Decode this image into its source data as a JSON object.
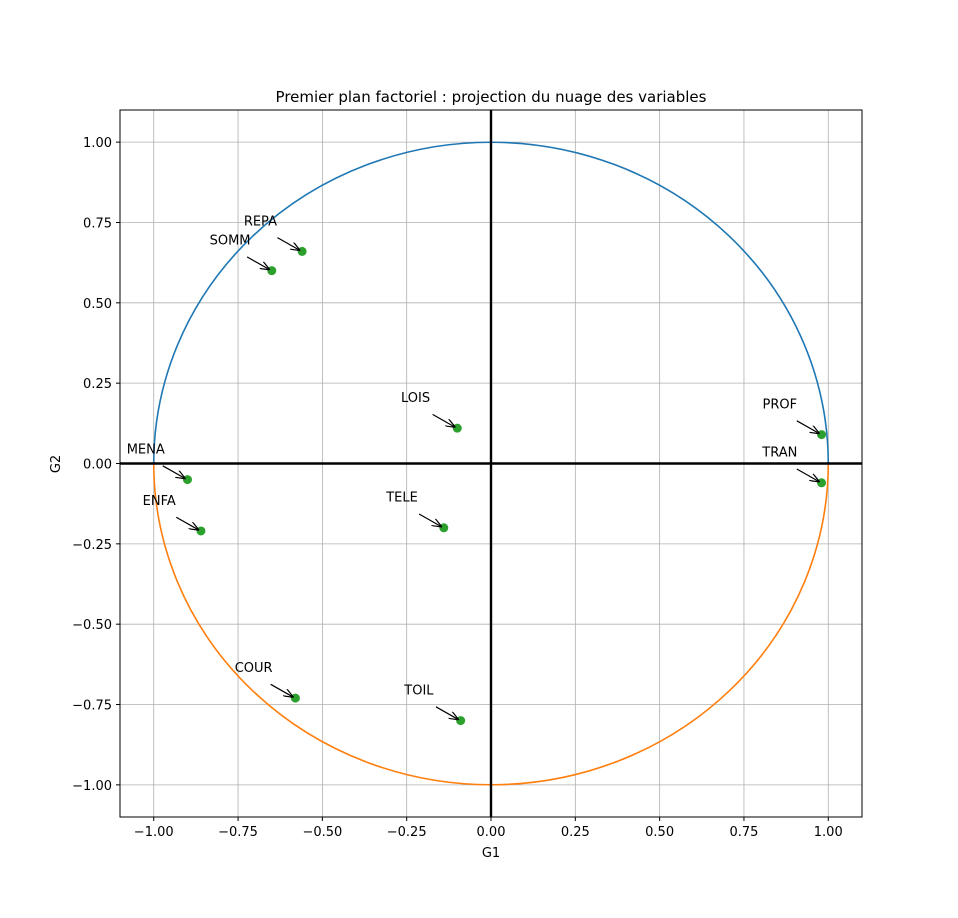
{
  "chart_data": {
    "type": "scatter",
    "title": "Premier plan factoriel : projection du nuage des variables",
    "xlabel": "G1",
    "ylabel": "G2",
    "xlim": [
      -1.1,
      1.1
    ],
    "ylim": [
      -1.1,
      1.1
    ],
    "grid": true,
    "xticks": [
      -1.0,
      -0.75,
      -0.5,
      -0.25,
      0.0,
      0.25,
      0.5,
      0.75,
      1.0
    ],
    "yticks": [
      -1.0,
      -0.75,
      -0.5,
      -0.25,
      0.0,
      0.25,
      0.5,
      0.75,
      1.0
    ],
    "xtick_labels": [
      "−1.00",
      "−0.75",
      "−0.50",
      "−0.25",
      "0.00",
      "0.25",
      "0.50",
      "0.75",
      "1.00"
    ],
    "ytick_labels": [
      "−1.00",
      "−0.75",
      "−0.50",
      "−0.25",
      "0.00",
      "0.25",
      "0.50",
      "0.75",
      "1.00"
    ],
    "circle": {
      "radius": 1,
      "upper_color": "#1f77b4",
      "lower_color": "#ff7f0e"
    },
    "point_color": "#2ca02c",
    "points": [
      {
        "label": "REPA",
        "x": -0.56,
        "y": 0.66
      },
      {
        "label": "SOMM",
        "x": -0.65,
        "y": 0.6
      },
      {
        "label": "LOIS",
        "x": -0.1,
        "y": 0.11
      },
      {
        "label": "PROF",
        "x": 0.98,
        "y": 0.09
      },
      {
        "label": "TRAN",
        "x": 0.98,
        "y": -0.06
      },
      {
        "label": "MENA",
        "x": -0.9,
        "y": -0.05
      },
      {
        "label": "ENFA",
        "x": -0.86,
        "y": -0.21
      },
      {
        "label": "TELE",
        "x": -0.14,
        "y": -0.2
      },
      {
        "label": "COUR",
        "x": -0.58,
        "y": -0.73
      },
      {
        "label": "TOIL",
        "x": -0.09,
        "y": -0.8
      }
    ]
  }
}
